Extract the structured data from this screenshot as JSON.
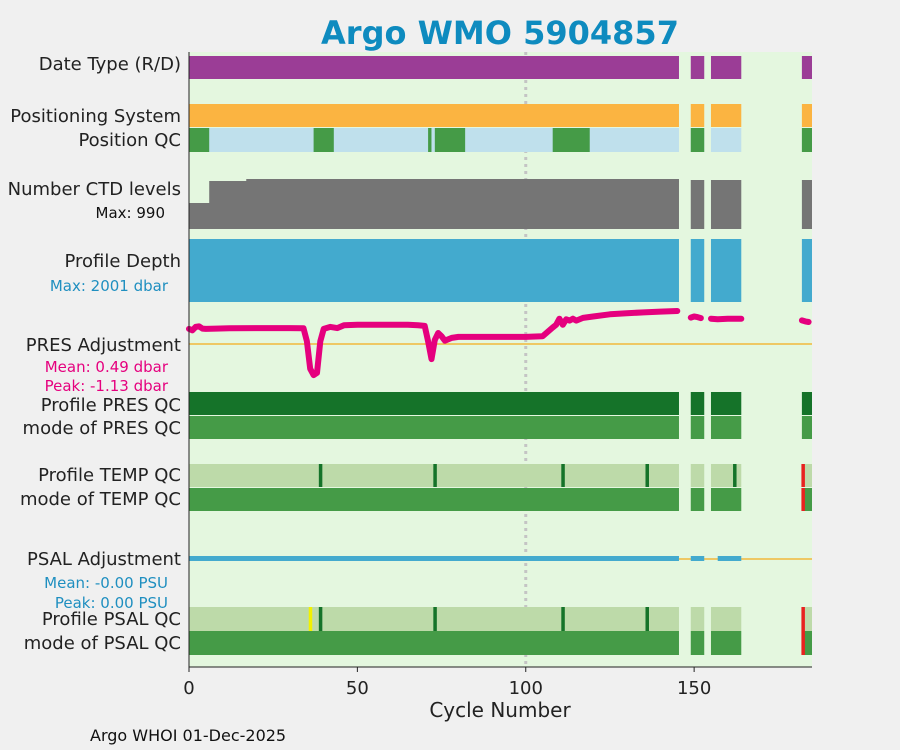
{
  "chart_data": {
    "type": "bar",
    "title": "Argo WMO 5904857",
    "xlabel": "Cycle Number",
    "xlim": [
      0,
      185
    ],
    "xticks": [
      0,
      50,
      100,
      150
    ],
    "reference_line_x": 100,
    "gaps": [
      [
        145.5,
        149
      ],
      [
        153,
        155
      ],
      [
        164,
        182
      ]
    ],
    "rows": [
      {
        "label": "Date Type (R/D)",
        "color": "#9b3d96",
        "segments": [
          [
            0,
            145.5
          ],
          [
            149,
            153
          ],
          [
            155,
            164
          ],
          [
            182,
            185
          ]
        ]
      },
      {
        "label": "Positioning System",
        "color": "#fbb441",
        "segments": [
          [
            0,
            145.5
          ],
          [
            149,
            153
          ],
          [
            155,
            164
          ],
          [
            182,
            185
          ]
        ]
      },
      {
        "label": "Position QC",
        "color": "#bfe0ec",
        "segments": [
          [
            0,
            145.5
          ],
          [
            149,
            153
          ],
          [
            155,
            164
          ],
          [
            182,
            185
          ]
        ],
        "good_color": "#459b47",
        "good_segments": [
          [
            0,
            6
          ],
          [
            37,
            43
          ],
          [
            71,
            72
          ],
          [
            73,
            82
          ],
          [
            108,
            119
          ],
          [
            149,
            153
          ],
          [
            182,
            185
          ]
        ]
      },
      {
        "label": "Number CTD levels",
        "color": "#757575",
        "max_label": "Max: 990",
        "max_value": 990
      },
      {
        "label": "Profile Depth",
        "color": "#43aace",
        "max_label": "Max: 2001 dbar",
        "max_value": 2001
      },
      {
        "label": "PRES Adjustment",
        "color": "#e5007e",
        "mean_label": "Mean: 0.49 dbar",
        "peak_label": "Peak: -1.13 dbar",
        "mean": 0.49,
        "peak": -1.13,
        "cycles": [
          0,
          1,
          2,
          3,
          4,
          5,
          8,
          12,
          20,
          30,
          34,
          35,
          36,
          37,
          38,
          39,
          40,
          42,
          44,
          46,
          50,
          60,
          65,
          68,
          70,
          71,
          72,
          73,
          74,
          75,
          76,
          78,
          80,
          90,
          100,
          105,
          108,
          109,
          110,
          111,
          112,
          113,
          114,
          115,
          117,
          120,
          125,
          130,
          135,
          140,
          145,
          149,
          150,
          151,
          152,
          155,
          157,
          160,
          164,
          182,
          183,
          184
        ],
        "values": [
          0.55,
          0.5,
          0.62,
          0.64,
          0.56,
          0.55,
          0.56,
          0.57,
          0.58,
          0.58,
          0.57,
          0.1,
          -0.9,
          -1.13,
          -1.05,
          0.1,
          0.55,
          0.62,
          0.58,
          0.68,
          0.7,
          0.7,
          0.7,
          0.68,
          0.66,
          0.1,
          -0.55,
          0.15,
          0.4,
          0.28,
          0.12,
          0.22,
          0.26,
          0.26,
          0.26,
          0.28,
          0.6,
          0.7,
          0.92,
          0.7,
          0.9,
          0.85,
          0.92,
          0.85,
          0.95,
          1.0,
          1.08,
          1.12,
          1.15,
          1.18,
          1.2,
          0.96,
          1.0,
          0.98,
          0.94,
          0.92,
          0.9,
          0.92,
          0.92,
          0.86,
          0.82,
          0.8
        ]
      },
      {
        "label": "Profile PRES QC",
        "color": "#157329",
        "segments": [
          [
            0,
            145.5
          ],
          [
            149,
            153
          ],
          [
            155,
            164
          ],
          [
            182,
            185
          ]
        ]
      },
      {
        "label": "mode of PRES QC",
        "color": "#459b47",
        "segments": [
          [
            0,
            145.5
          ],
          [
            149,
            153
          ],
          [
            155,
            164
          ],
          [
            182,
            185
          ]
        ]
      },
      {
        "label": "Profile TEMP QC",
        "color": "#bddaa9",
        "segments": [
          [
            0,
            145.5
          ],
          [
            149,
            153
          ],
          [
            155,
            164
          ],
          [
            182,
            185
          ]
        ],
        "marks": [
          {
            "x": 39,
            "color": "#157329"
          },
          {
            "x": 73,
            "color": "#157329"
          },
          {
            "x": 111,
            "color": "#157329"
          },
          {
            "x": 136,
            "color": "#157329"
          },
          {
            "x": 162,
            "color": "#157329"
          },
          {
            "x": 182.3,
            "color": "#e8211f"
          }
        ]
      },
      {
        "label": "mode of TEMP QC",
        "color": "#459b47",
        "segments": [
          [
            0,
            145.5
          ],
          [
            149,
            153
          ],
          [
            155,
            164
          ],
          [
            182,
            185
          ]
        ],
        "marks": [
          {
            "x": 182.3,
            "color": "#e8211f"
          }
        ]
      },
      {
        "label": "PSAL Adjustment",
        "color": "#43aace",
        "mean_label": "Mean: -0.00 PSU",
        "peak_label": "Peak: 0.00 PSU",
        "mean": -0.0,
        "peak": 0.0
      },
      {
        "label": "Profile PSAL QC",
        "color": "#bddaa9",
        "segments": [
          [
            0,
            145.5
          ],
          [
            149,
            153
          ],
          [
            155,
            164
          ],
          [
            182,
            185
          ]
        ],
        "marks": [
          {
            "x": 36,
            "color": "#f2f200"
          },
          {
            "x": 39,
            "color": "#157329"
          },
          {
            "x": 73,
            "color": "#157329"
          },
          {
            "x": 111,
            "color": "#157329"
          },
          {
            "x": 136,
            "color": "#157329"
          },
          {
            "x": 182.3,
            "color": "#e8211f"
          }
        ]
      },
      {
        "label": "mode of PSAL QC",
        "color": "#459b47",
        "segments": [
          [
            0,
            145.5
          ],
          [
            149,
            153
          ],
          [
            155,
            164
          ],
          [
            182,
            185
          ]
        ],
        "marks": [
          {
            "x": 182.3,
            "color": "#e8211f"
          }
        ]
      }
    ]
  },
  "footer": "Argo WHOI 01-Dec-2025"
}
